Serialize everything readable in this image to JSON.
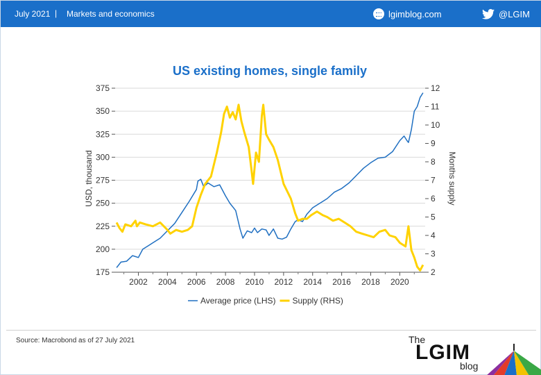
{
  "header": {
    "date": "July 2021",
    "separator": "|",
    "section": "Markets and economics",
    "site": "lgimblog.com",
    "social": "@LGIM",
    "site_icon": "blog-icon",
    "social_icon": "twitter-icon"
  },
  "footer": {
    "source": "Source: Macrobond as of 27 July 2021",
    "logo_the": "The",
    "logo_name": "LGIM",
    "logo_blog": "blog"
  },
  "colors": {
    "header_bg": "#1a6fc9",
    "title": "#1a6fc9",
    "series_price": "#1f6fc1",
    "series_supply": "#ffd200"
  },
  "chart_data": {
    "type": "line",
    "title": "US existing homes, single family",
    "ylabel": "USD, thousand",
    "y2label": "Months supply",
    "ylim": [
      175,
      375
    ],
    "y2lim": [
      2,
      12
    ],
    "xlim": [
      2000.4,
      2021.75
    ],
    "yticks": [
      175,
      200,
      225,
      250,
      275,
      300,
      325,
      350,
      375
    ],
    "y2ticks": [
      2,
      3,
      4,
      5,
      6,
      7,
      8,
      9,
      10,
      11,
      12
    ],
    "xticks": [
      2002,
      2004,
      2006,
      2008,
      2010,
      2012,
      2014,
      2016,
      2018,
      2020
    ],
    "grid": true,
    "legend_position": "bottom",
    "series": [
      {
        "name": "Average price (LHS)",
        "axis": "left",
        "points": [
          [
            2000.5,
            180
          ],
          [
            2000.8,
            186
          ],
          [
            2001.2,
            187
          ],
          [
            2001.6,
            193
          ],
          [
            2002.0,
            191
          ],
          [
            2002.3,
            200
          ],
          [
            2002.7,
            204
          ],
          [
            2003.0,
            207
          ],
          [
            2003.5,
            212
          ],
          [
            2004.0,
            220
          ],
          [
            2004.5,
            228
          ],
          [
            2005.0,
            240
          ],
          [
            2005.5,
            252
          ],
          [
            2006.0,
            265
          ],
          [
            2006.1,
            274
          ],
          [
            2006.3,
            276
          ],
          [
            2006.5,
            268
          ],
          [
            2006.8,
            272
          ],
          [
            2007.2,
            268
          ],
          [
            2007.6,
            270
          ],
          [
            2008.0,
            258
          ],
          [
            2008.3,
            250
          ],
          [
            2008.7,
            242
          ],
          [
            2009.0,
            222
          ],
          [
            2009.2,
            212
          ],
          [
            2009.5,
            220
          ],
          [
            2009.8,
            218
          ],
          [
            2010.0,
            223
          ],
          [
            2010.2,
            218
          ],
          [
            2010.5,
            222
          ],
          [
            2010.8,
            221
          ],
          [
            2011.0,
            215
          ],
          [
            2011.3,
            222
          ],
          [
            2011.6,
            212
          ],
          [
            2011.9,
            211
          ],
          [
            2012.2,
            213
          ],
          [
            2012.5,
            222
          ],
          [
            2012.8,
            230
          ],
          [
            2013.0,
            232
          ],
          [
            2013.3,
            230
          ],
          [
            2013.6,
            238
          ],
          [
            2014.0,
            245
          ],
          [
            2014.3,
            248
          ],
          [
            2014.7,
            252
          ],
          [
            2015.0,
            255
          ],
          [
            2015.5,
            262
          ],
          [
            2016.0,
            266
          ],
          [
            2016.5,
            272
          ],
          [
            2017.0,
            280
          ],
          [
            2017.5,
            288
          ],
          [
            2018.0,
            294
          ],
          [
            2018.5,
            299
          ],
          [
            2019.0,
            300
          ],
          [
            2019.5,
            306
          ],
          [
            2020.0,
            318
          ],
          [
            2020.3,
            323
          ],
          [
            2020.5,
            318
          ],
          [
            2020.6,
            316
          ],
          [
            2020.8,
            330
          ],
          [
            2021.0,
            350
          ],
          [
            2021.2,
            355
          ],
          [
            2021.4,
            365
          ],
          [
            2021.6,
            370
          ]
        ]
      },
      {
        "name": "Supply (RHS)",
        "axis": "right",
        "points": [
          [
            2000.5,
            4.7
          ],
          [
            2000.7,
            4.4
          ],
          [
            2000.9,
            4.2
          ],
          [
            2001.1,
            4.6
          ],
          [
            2001.5,
            4.5
          ],
          [
            2001.8,
            4.8
          ],
          [
            2001.9,
            4.5
          ],
          [
            2002.1,
            4.7
          ],
          [
            2002.5,
            4.6
          ],
          [
            2003.0,
            4.5
          ],
          [
            2003.5,
            4.7
          ],
          [
            2004.0,
            4.3
          ],
          [
            2004.2,
            4.1
          ],
          [
            2004.6,
            4.3
          ],
          [
            2005.0,
            4.2
          ],
          [
            2005.4,
            4.3
          ],
          [
            2005.7,
            4.5
          ],
          [
            2006.0,
            5.5
          ],
          [
            2006.3,
            6.2
          ],
          [
            2006.6,
            6.8
          ],
          [
            2007.0,
            7.2
          ],
          [
            2007.4,
            8.5
          ],
          [
            2007.7,
            9.6
          ],
          [
            2007.9,
            10.6
          ],
          [
            2008.1,
            11.0
          ],
          [
            2008.3,
            10.4
          ],
          [
            2008.5,
            10.7
          ],
          [
            2008.7,
            10.3
          ],
          [
            2008.9,
            11.1
          ],
          [
            2009.1,
            10.2
          ],
          [
            2009.3,
            9.6
          ],
          [
            2009.6,
            8.8
          ],
          [
            2009.8,
            7.5
          ],
          [
            2009.9,
            6.8
          ],
          [
            2010.1,
            8.5
          ],
          [
            2010.3,
            8.0
          ],
          [
            2010.5,
            10.5
          ],
          [
            2010.6,
            11.1
          ],
          [
            2010.8,
            9.5
          ],
          [
            2011.0,
            9.2
          ],
          [
            2011.3,
            8.8
          ],
          [
            2011.6,
            8.1
          ],
          [
            2012.0,
            6.8
          ],
          [
            2012.5,
            6.0
          ],
          [
            2012.8,
            5.2
          ],
          [
            2013.0,
            4.8
          ],
          [
            2013.3,
            4.9
          ],
          [
            2013.6,
            4.9
          ],
          [
            2013.9,
            5.1
          ],
          [
            2014.3,
            5.3
          ],
          [
            2014.7,
            5.1
          ],
          [
            2015.0,
            5.0
          ],
          [
            2015.4,
            4.8
          ],
          [
            2015.8,
            4.9
          ],
          [
            2016.2,
            4.7
          ],
          [
            2016.6,
            4.5
          ],
          [
            2017.0,
            4.2
          ],
          [
            2017.4,
            4.1
          ],
          [
            2017.8,
            4.0
          ],
          [
            2018.2,
            3.9
          ],
          [
            2018.6,
            4.2
          ],
          [
            2019.0,
            4.3
          ],
          [
            2019.3,
            4.0
          ],
          [
            2019.7,
            3.9
          ],
          [
            2020.0,
            3.6
          ],
          [
            2020.4,
            3.4
          ],
          [
            2020.6,
            4.5
          ],
          [
            2020.8,
            3.2
          ],
          [
            2021.0,
            2.8
          ],
          [
            2021.2,
            2.3
          ],
          [
            2021.4,
            2.1
          ],
          [
            2021.6,
            2.4
          ]
        ]
      }
    ]
  }
}
